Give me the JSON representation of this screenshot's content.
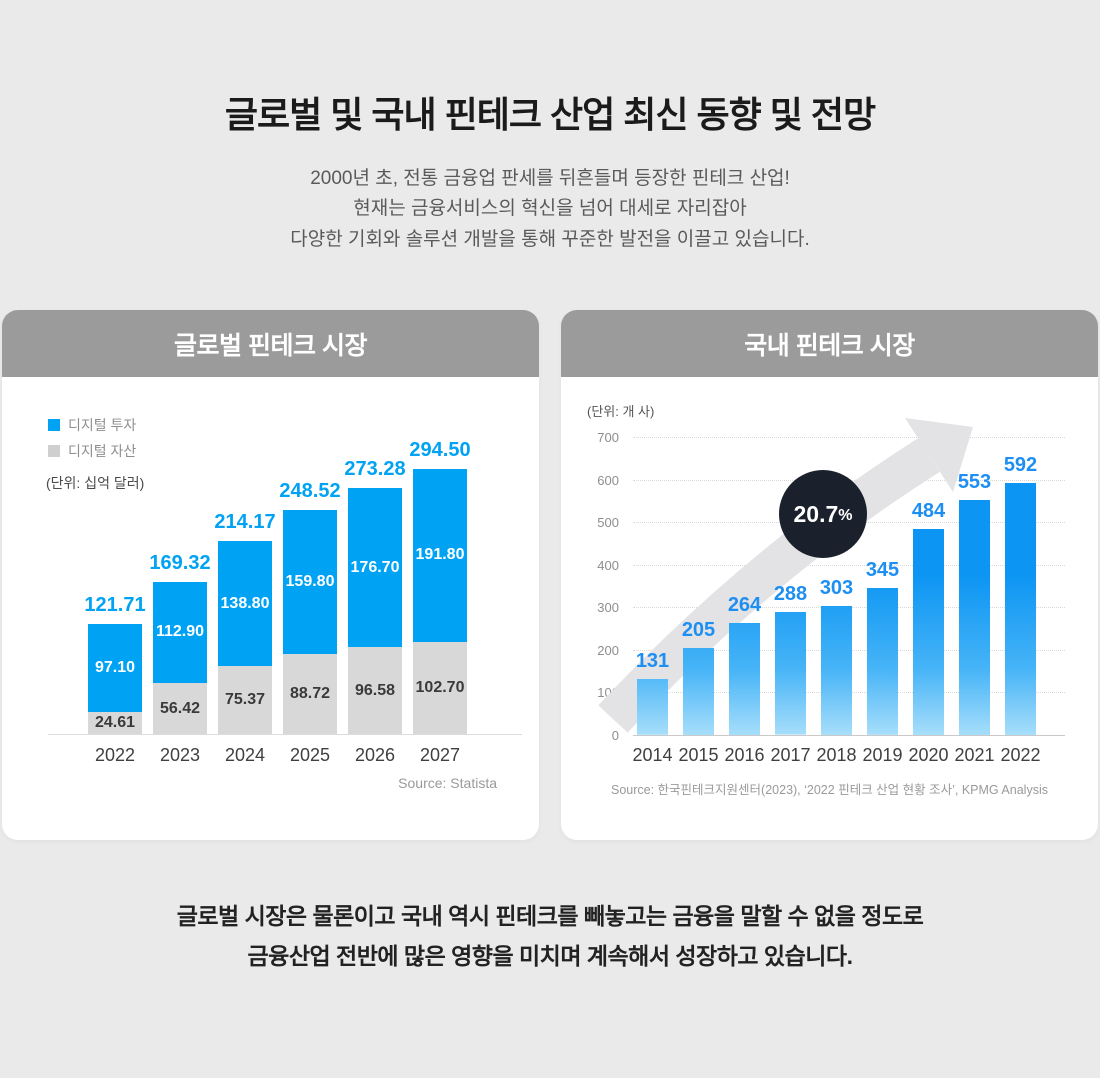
{
  "header": {
    "title": "글로벌 및 국내 핀테크 산업 최신 동향 및 전망",
    "subtitle_lines": [
      "2000년 초, 전통 금융업 판세를 뒤흔들며 등장한 핀테크 산업!",
      "현재는 금융서비스의 혁신을 넘어 대세로 자리잡아",
      "다양한 기회와 솔루션 개발을 통해 꾸준한 발전을 이끌고 있습니다."
    ]
  },
  "footer": {
    "lines": [
      "글로벌 시장은 물론이고 국내 역시 핀테크를 빼놓고는 금융을 말할 수 없을 정도로",
      "금융산업 전반에 많은 영향을 미치며 계속해서 성장하고 있습니다."
    ]
  },
  "colors": {
    "page_bg": "#EAEAEA",
    "card_header_bg": "#9B9B9B",
    "global_blue": "#00A2F4",
    "domestic_label_blue": "#1E8FF2",
    "domestic_bar_top": "#0C95F3",
    "domestic_bar_bottom": "#A7DEFB",
    "gray_bar": "#D8D8D8",
    "badge_bg": "#1A212C",
    "arrow_gray": "#E3E3E5"
  },
  "chart_data": [
    {
      "type": "bar",
      "stacked": true,
      "title": "글로벌 핀테크 시장",
      "unit": "(단위: 십억 달러)",
      "legend_position": "top-left",
      "grid": false,
      "categories": [
        "2022",
        "2023",
        "2024",
        "2025",
        "2026",
        "2027"
      ],
      "series": [
        {
          "name": "디지털 투자",
          "color": "#00A2F4",
          "values": [
            97.1,
            112.9,
            138.8,
            159.8,
            176.7,
            191.8
          ],
          "labels": [
            "97.10",
            "112.90",
            "138.80",
            "159.80",
            "176.70",
            "191.80"
          ]
        },
        {
          "name": "디지털 자산",
          "color": "#D8D8D8",
          "values": [
            24.61,
            56.42,
            75.37,
            88.72,
            96.58,
            102.7
          ],
          "labels": [
            "24.61",
            "56.42",
            "75.37",
            "88.72",
            "96.58",
            "102.70"
          ]
        }
      ],
      "totals": {
        "values": [
          121.71,
          169.32,
          214.17,
          248.52,
          273.28,
          294.5
        ],
        "labels": [
          "121.71",
          "169.32",
          "214.17",
          "248.52",
          "273.28",
          "294.50"
        ]
      },
      "source": "Source: Statista"
    },
    {
      "type": "bar",
      "title": "국내 핀테크 시장",
      "unit": "(단위: 개 사)",
      "categories": [
        "2014",
        "2015",
        "2016",
        "2017",
        "2018",
        "2019",
        "2020",
        "2021",
        "2022"
      ],
      "values": [
        131,
        205,
        264,
        288,
        303,
        345,
        484,
        553,
        592
      ],
      "ylim": [
        0,
        700
      ],
      "yticks": [
        0,
        100,
        200,
        300,
        400,
        500,
        600,
        700
      ],
      "grid": "horizontal-dotted",
      "annotation": {
        "value": "20.7",
        "suffix": "%"
      },
      "source": "Source: 한국핀테크지원센터(2023), ‘2022 핀테크 산업 현황 조사’, KPMG Analysis"
    }
  ]
}
